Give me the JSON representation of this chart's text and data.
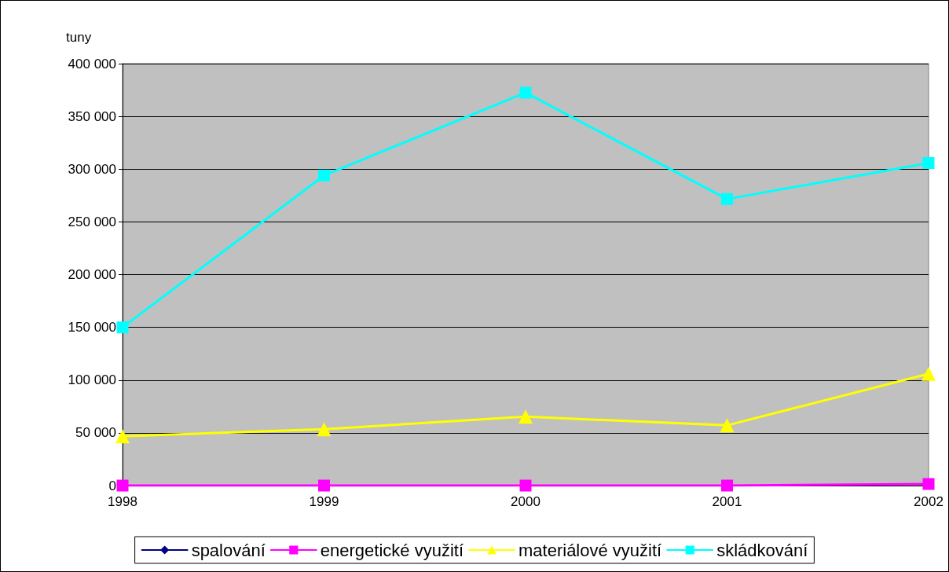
{
  "chart_data": {
    "type": "line",
    "ylabel": "tuny",
    "categories": [
      "1998",
      "1999",
      "2000",
      "2001",
      "2002"
    ],
    "series": [
      {
        "name": "spalování",
        "color": "#000080",
        "marker": "diamond",
        "values": [
          null,
          null,
          null,
          null,
          null
        ]
      },
      {
        "name": "energetické využití",
        "color": "#ff00ff",
        "marker": "square",
        "values": [
          0,
          0,
          0,
          0,
          1500
        ]
      },
      {
        "name": "materiálové využití",
        "color": "#ffff00",
        "marker": "triangle",
        "values": [
          46800,
          53400,
          65300,
          57100,
          106000
        ]
      },
      {
        "name": "skládkování",
        "color": "#00ffff",
        "marker": "square",
        "values": [
          150000,
          294000,
          372500,
          271600,
          305800
        ]
      }
    ],
    "ylim": [
      0,
      400000
    ],
    "yticks": [
      0,
      {
        "value": 50000,
        "label": "50 000"
      },
      {
        "value": 100000,
        "label": "100 000"
      },
      {
        "value": 150000,
        "label": "150 000"
      },
      {
        "value": 200000,
        "label": "200 000"
      },
      {
        "value": 250000,
        "label": "250 000"
      },
      {
        "value": 300000,
        "label": "300 000"
      },
      {
        "value": 350000,
        "label": "350 000"
      },
      {
        "value": 400000,
        "label": "400 000"
      }
    ],
    "grid": "y",
    "legend": "bottom",
    "line_style": "solid"
  }
}
